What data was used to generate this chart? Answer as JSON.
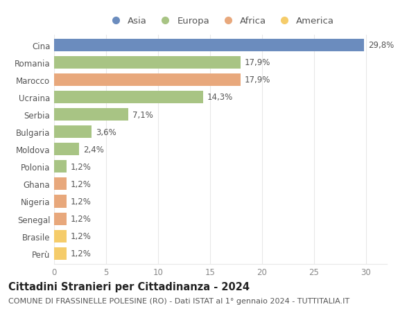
{
  "categories": [
    "Cina",
    "Romania",
    "Marocco",
    "Ucraina",
    "Serbia",
    "Bulgaria",
    "Moldova",
    "Polonia",
    "Ghana",
    "Nigeria",
    "Senegal",
    "Brasile",
    "Perù"
  ],
  "values": [
    29.8,
    17.9,
    17.9,
    14.3,
    7.1,
    3.6,
    2.4,
    1.2,
    1.2,
    1.2,
    1.2,
    1.2,
    1.2
  ],
  "labels": [
    "29,8%",
    "17,9%",
    "17,9%",
    "14,3%",
    "7,1%",
    "3,6%",
    "2,4%",
    "1,2%",
    "1,2%",
    "1,2%",
    "1,2%",
    "1,2%",
    "1,2%"
  ],
  "continents": [
    "Asia",
    "Europa",
    "Africa",
    "Europa",
    "Europa",
    "Europa",
    "Europa",
    "Europa",
    "Africa",
    "Africa",
    "Africa",
    "America",
    "America"
  ],
  "colors": {
    "Asia": "#6b8cbe",
    "Europa": "#a8c484",
    "Africa": "#e8a87c",
    "America": "#f5cc6a"
  },
  "title": "Cittadini Stranieri per Cittadinanza - 2024",
  "subtitle": "COMUNE DI FRASSINELLE POLESINE (RO) - Dati ISTAT al 1° gennaio 2024 - TUTTITALIA.IT",
  "xlim": [
    0,
    32
  ],
  "xticks": [
    0,
    5,
    10,
    15,
    20,
    25,
    30
  ],
  "background_color": "#ffffff",
  "grid_color": "#e8e8e8",
  "bar_height": 0.72,
  "title_fontsize": 10.5,
  "subtitle_fontsize": 8,
  "label_fontsize": 8.5,
  "tick_fontsize": 8.5,
  "legend_fontsize": 9.5
}
